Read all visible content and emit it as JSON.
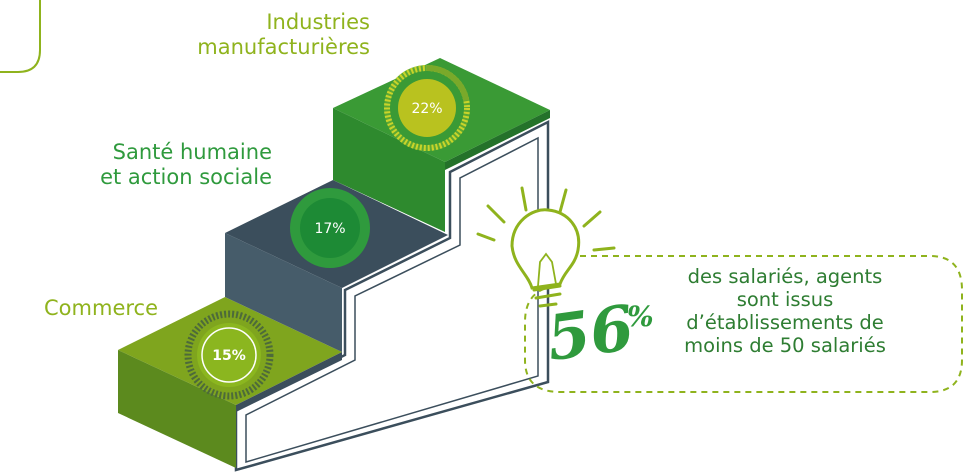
{
  "steps": [
    {
      "label": "Industries manufacturières",
      "label_lines": [
        "Industries",
        "manufacturières"
      ],
      "value": 22,
      "display": "22%",
      "color": "#8fb31d"
    },
    {
      "label": "Santé humaine et action sociale",
      "label_lines": [
        "Santé humaine",
        "et action sociale"
      ],
      "value": 17,
      "display": "17%",
      "color": "#2f9a3d"
    },
    {
      "label": "Commerce",
      "label_lines": [
        "Commerce"
      ],
      "value": 15,
      "display": "15%",
      "color": "#8fb31d"
    }
  ],
  "callout": {
    "big_number": "56",
    "big_unit": "%",
    "lines": [
      "des salariés, agents",
      "sont issus",
      "d’établissements de",
      "moins de 50 salariés"
    ]
  },
  "colors": {
    "lime": "#8fb31d",
    "green": "#2f9a3d",
    "dark_green": "#2e7d32",
    "slate": "#3b4e5c"
  },
  "icons": [
    "lightbulb-icon"
  ]
}
